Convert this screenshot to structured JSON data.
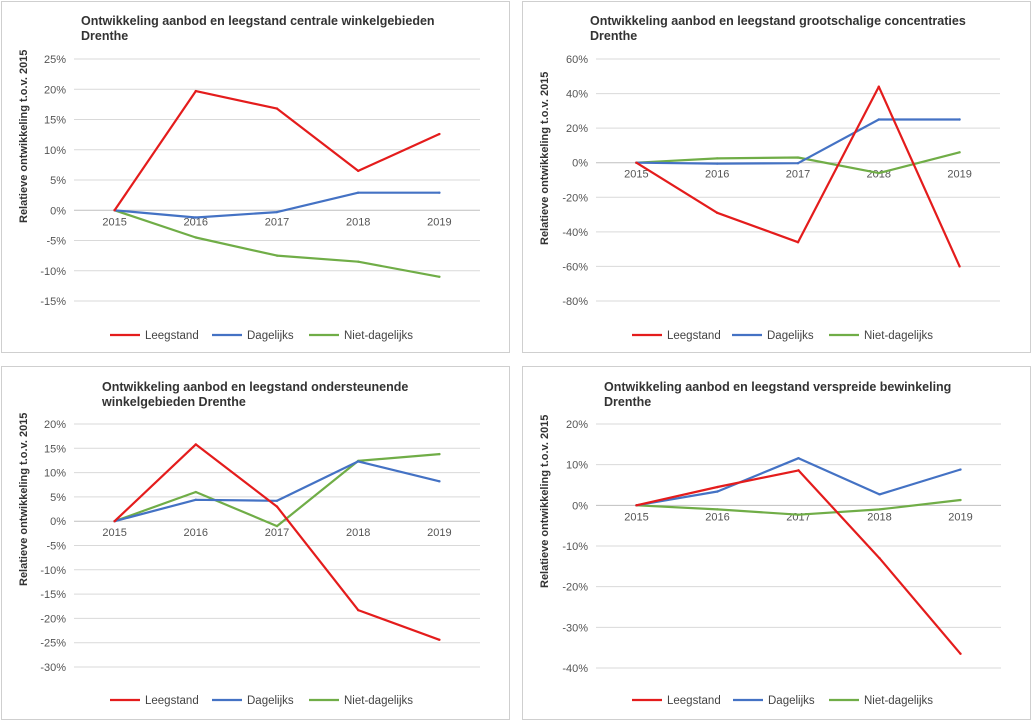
{
  "series_colors": {
    "Leegstand": "#e41c1c",
    "Dagelijks": "#4472c4",
    "Niet-dagelijks": "#70ad47"
  },
  "chart_data": [
    {
      "type": "line",
      "title": "Ontwikkeling aanbod en leegstand centrale winkelgebieden\nDrenthe",
      "ylabel": "Relatieve ontwikkeling t.o.v. 2015",
      "x": [
        "2015",
        "2016",
        "2017",
        "2018",
        "2019"
      ],
      "ylim": [
        -15,
        25
      ],
      "ytick_step": 5,
      "ytick_labels": [
        "-15%",
        "-10%",
        "-5%",
        "0%",
        "5%",
        "10%",
        "15%",
        "20%",
        "25%"
      ],
      "series": [
        {
          "name": "Leegstand",
          "values": [
            0,
            19.7,
            16.8,
            6.5,
            12.6
          ]
        },
        {
          "name": "Dagelijks",
          "values": [
            0,
            -1.2,
            -0.3,
            2.9,
            2.9
          ]
        },
        {
          "name": "Niet-dagelijks",
          "values": [
            0,
            -4.5,
            -7.5,
            -8.5,
            -11
          ]
        }
      ]
    },
    {
      "type": "line",
      "title": "Ontwikkeling aanbod en leegstand grootschalige concentraties\nDrenthe",
      "ylabel": "Relatieve ontwikkeling t.o.v. 2015",
      "x": [
        "2015",
        "2016",
        "2017",
        "2018",
        "2019"
      ],
      "ylim": [
        -80,
        60
      ],
      "ytick_step": 20,
      "ytick_labels": [
        "-80%",
        "-60%",
        "-40%",
        "-20%",
        "0%",
        "20%",
        "40%",
        "60%"
      ],
      "series": [
        {
          "name": "Leegstand",
          "values": [
            0,
            -29,
            -46,
            44,
            -60
          ]
        },
        {
          "name": "Dagelijks",
          "values": [
            0,
            -0.5,
            -0.3,
            25,
            25
          ]
        },
        {
          "name": "Niet-dagelijks",
          "values": [
            0,
            2.5,
            3,
            -6,
            6
          ]
        }
      ]
    },
    {
      "type": "line",
      "title": "Ontwikkeling aanbod en leegstand ondersteunende\nwinkelgebieden  Drenthe",
      "ylabel": "Relatieve ontwikkeling t.o.v. 2015",
      "x": [
        "2015",
        "2016",
        "2017",
        "2018",
        "2019"
      ],
      "ylim": [
        -30,
        20
      ],
      "ytick_step": 5,
      "ytick_labels": [
        "-30%",
        "-25%",
        "-20%",
        "-15%",
        "-10%",
        "-5%",
        "0%",
        "5%",
        "10%",
        "15%",
        "20%"
      ],
      "series": [
        {
          "name": "Leegstand",
          "values": [
            0,
            15.8,
            3,
            -18.3,
            -24.4
          ]
        },
        {
          "name": "Dagelijks",
          "values": [
            0,
            4.4,
            4.2,
            12.3,
            8.2
          ]
        },
        {
          "name": "Niet-dagelijks",
          "values": [
            0,
            6,
            -1,
            12.4,
            13.8
          ]
        }
      ]
    },
    {
      "type": "line",
      "title": "Ontwikkeling aanbod en leegstand verspreide bewinkeling\nDrenthe",
      "ylabel": "Relatieve ontwikkeling t.o.v. 2015",
      "x": [
        "2015",
        "2016",
        "2017",
        "2018",
        "2019"
      ],
      "ylim": [
        -40,
        20
      ],
      "ytick_step": 10,
      "ytick_labels": [
        "-40%",
        "-30%",
        "-20%",
        "-10%",
        "0%",
        "10%",
        "20%"
      ],
      "series": [
        {
          "name": "Leegstand",
          "values": [
            0,
            4.5,
            8.6,
            -13,
            -36.5
          ]
        },
        {
          "name": "Dagelijks",
          "values": [
            0,
            3.4,
            11.6,
            2.7,
            8.8
          ]
        },
        {
          "name": "Niet-dagelijks",
          "values": [
            0,
            -1,
            -2.3,
            -1,
            1.3
          ]
        }
      ]
    }
  ]
}
